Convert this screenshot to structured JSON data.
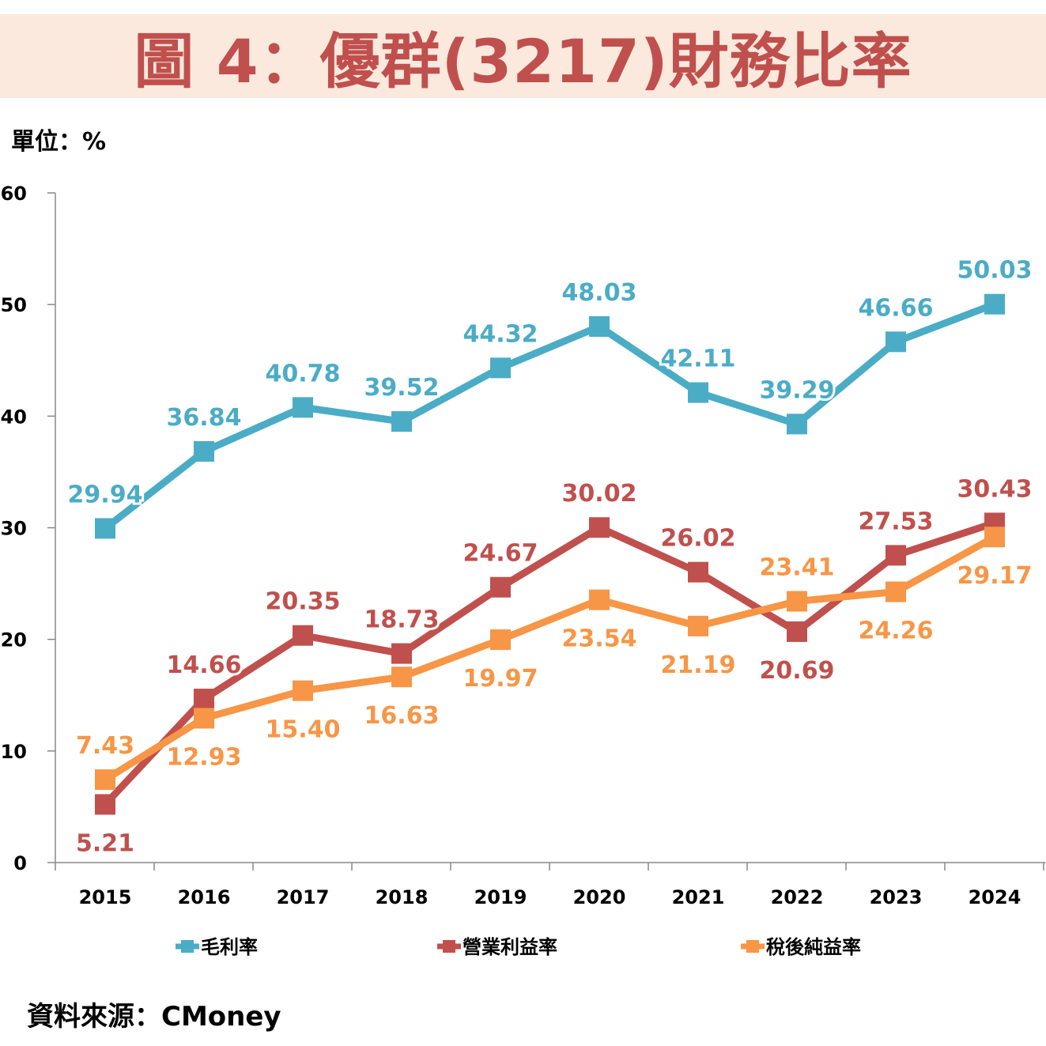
{
  "header": {
    "title": "圖 4：優群(3217)財務比率",
    "unit": "單位：%"
  },
  "footer": {
    "source": "資料來源：CMoney"
  },
  "chart_data": {
    "type": "line",
    "title": "圖 4：優群(3217)財務比率",
    "xlabel": "",
    "ylabel": "單位：%",
    "categories": [
      "2015",
      "2016",
      "2017",
      "2018",
      "2019",
      "2020",
      "2021",
      "2022",
      "2023",
      "2024"
    ],
    "ylim": [
      0,
      60
    ],
    "yticks": [
      0,
      10,
      20,
      30,
      40,
      50,
      60
    ],
    "grid": false,
    "legend_position": "bottom",
    "series": [
      {
        "name": "毛利率",
        "color": "#4bacc6",
        "values": [
          29.94,
          36.84,
          40.78,
          39.52,
          44.32,
          48.03,
          42.11,
          39.29,
          46.66,
          50.03
        ],
        "labels": [
          "29.94",
          "36.84",
          "40.78",
          "39.52",
          "44.32",
          "48.03",
          "42.11",
          "39.29",
          "46.66",
          "50.03"
        ],
        "label_side": [
          "above",
          "above",
          "above",
          "above",
          "above",
          "above",
          "above",
          "above",
          "above",
          "above"
        ]
      },
      {
        "name": "營業利益率",
        "color": "#c0504d",
        "values": [
          5.21,
          14.66,
          20.35,
          18.73,
          24.67,
          30.02,
          26.02,
          20.69,
          27.53,
          30.43
        ],
        "labels": [
          "5.21",
          "14.66",
          "20.35",
          "18.73",
          "24.67",
          "30.02",
          "26.02",
          "20.69",
          "27.53",
          "30.43"
        ],
        "label_side": [
          "below",
          "above",
          "above",
          "above",
          "above",
          "above",
          "above",
          "below",
          "above",
          "above"
        ]
      },
      {
        "name": "稅後純益率",
        "color": "#f79646",
        "values": [
          7.43,
          12.93,
          15.4,
          16.63,
          19.97,
          23.54,
          21.19,
          23.41,
          24.26,
          29.17
        ],
        "labels": [
          "7.43",
          "12.93",
          "15.40",
          "16.63",
          "19.97",
          "23.54",
          "21.19",
          "23.41",
          "24.26",
          "29.17"
        ],
        "label_side": [
          "above",
          "below",
          "below",
          "below",
          "below",
          "below",
          "below",
          "above",
          "below",
          "below"
        ]
      }
    ]
  }
}
